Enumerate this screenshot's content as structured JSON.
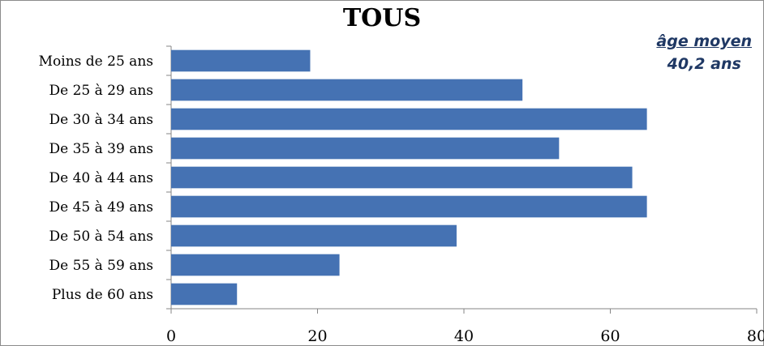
{
  "chart_data": {
    "type": "bar",
    "orientation": "horizontal",
    "title": "TOUS",
    "annotation": {
      "line1": "âge moyen",
      "line2": "40,2 ans"
    },
    "categories": [
      "Moins de 25 ans",
      "De 25 à 29 ans",
      "De 30 à 34 ans",
      "De 35 à 39 ans",
      "De 40 à 44 ans",
      "De 45 à 49 ans",
      "De 50 à 54 ans",
      "De 55 à 59 ans",
      "Plus de 60 ans"
    ],
    "values": [
      19,
      48,
      65,
      53,
      63,
      65,
      39,
      23,
      9
    ],
    "xlim": [
      0,
      80
    ],
    "xticks": [
      "0",
      "20",
      "40",
      "60",
      "80"
    ],
    "bar_color": "#4572b3",
    "grid": false,
    "legend": "none"
  }
}
